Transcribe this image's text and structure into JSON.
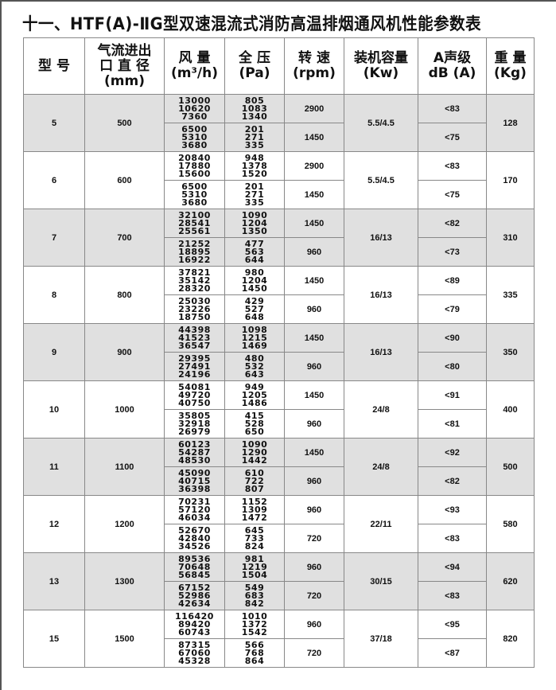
{
  "title": "十一、HTF(A)-ⅡG型双速混流式消防高温排烟通风机性能参数表",
  "headers": [
    [
      "型 号"
    ],
    [
      "气流进出",
      "口 直 径",
      "(mm)"
    ],
    [
      "风   量",
      "(m³/h)"
    ],
    [
      "全   压",
      "(Pa)"
    ],
    [
      "转   速",
      "(rpm)"
    ],
    [
      "装机容量",
      "(Kw)"
    ],
    [
      "A声级",
      "dB (A)"
    ],
    [
      "重 量",
      "(Kg)"
    ]
  ],
  "rows": [
    {
      "model": "5",
      "diameter": "500",
      "power": "5.5/4.5",
      "weight": "128",
      "sub": [
        {
          "flow": [
            "13000",
            "10620",
            "7360"
          ],
          "pressure": [
            "805",
            "1083",
            "1340"
          ],
          "speed": "2900",
          "noise": "<83"
        },
        {
          "flow": [
            "6500",
            "5310",
            "3680"
          ],
          "pressure": [
            "201",
            "271",
            "335"
          ],
          "speed": "1450",
          "noise": "<75"
        }
      ]
    },
    {
      "model": "6",
      "diameter": "600",
      "power": "5.5/4.5",
      "weight": "170",
      "sub": [
        {
          "flow": [
            "20840",
            "17880",
            "15600"
          ],
          "pressure": [
            "948",
            "1378",
            "1520"
          ],
          "speed": "2900",
          "noise": "<83"
        },
        {
          "flow": [
            "6500",
            "5310",
            "3680"
          ],
          "pressure": [
            "201",
            "271",
            "335"
          ],
          "speed": "1450",
          "noise": "<75"
        }
      ]
    },
    {
      "model": "7",
      "diameter": "700",
      "power": "16/13",
      "weight": "310",
      "sub": [
        {
          "flow": [
            "32100",
            "28541",
            "25561"
          ],
          "pressure": [
            "1090",
            "1204",
            "1350"
          ],
          "speed": "1450",
          "noise": "<82"
        },
        {
          "flow": [
            "21252",
            "18895",
            "16922"
          ],
          "pressure": [
            "477",
            "563",
            "644"
          ],
          "speed": "960",
          "noise": "<73"
        }
      ]
    },
    {
      "model": "8",
      "diameter": "800",
      "power": "16/13",
      "weight": "335",
      "sub": [
        {
          "flow": [
            "37821",
            "35142",
            "28320"
          ],
          "pressure": [
            "980",
            "1204",
            "1450"
          ],
          "speed": "1450",
          "noise": "<89"
        },
        {
          "flow": [
            "25030",
            "23226",
            "18750"
          ],
          "pressure": [
            "429",
            "527",
            "648"
          ],
          "speed": "960",
          "noise": "<79"
        }
      ]
    },
    {
      "model": "9",
      "diameter": "900",
      "power": "16/13",
      "weight": "350",
      "sub": [
        {
          "flow": [
            "44398",
            "41523",
            "36547"
          ],
          "pressure": [
            "1098",
            "1215",
            "1469"
          ],
          "speed": "1450",
          "noise": "<90"
        },
        {
          "flow": [
            "29395",
            "27491",
            "24196"
          ],
          "pressure": [
            "480",
            "532",
            "643"
          ],
          "speed": "960",
          "noise": "<80"
        }
      ]
    },
    {
      "model": "10",
      "diameter": "1000",
      "power": "24/8",
      "weight": "400",
      "sub": [
        {
          "flow": [
            "54081",
            "49720",
            "40750"
          ],
          "pressure": [
            "949",
            "1205",
            "1486"
          ],
          "speed": "1450",
          "noise": "<91"
        },
        {
          "flow": [
            "35805",
            "32918",
            "26979"
          ],
          "pressure": [
            "415",
            "528",
            "650"
          ],
          "speed": "960",
          "noise": "<81"
        }
      ]
    },
    {
      "model": "11",
      "diameter": "1100",
      "power": "24/8",
      "weight": "500",
      "sub": [
        {
          "flow": [
            "60123",
            "54287",
            "48530"
          ],
          "pressure": [
            "1090",
            "1290",
            "1442"
          ],
          "speed": "1450",
          "noise": "<92"
        },
        {
          "flow": [
            "45090",
            "40715",
            "36398"
          ],
          "pressure": [
            "610",
            "722",
            "807"
          ],
          "speed": "960",
          "noise": "<82"
        }
      ]
    },
    {
      "model": "12",
      "diameter": "1200",
      "power": "22/11",
      "weight": "580",
      "sub": [
        {
          "flow": [
            "70231",
            "57120",
            "46034"
          ],
          "pressure": [
            "1152",
            "1309",
            "1472"
          ],
          "speed": "960",
          "noise": "<93"
        },
        {
          "flow": [
            "52670",
            "42840",
            "34526"
          ],
          "pressure": [
            "645",
            "733",
            "824"
          ],
          "speed": "720",
          "noise": "<83"
        }
      ]
    },
    {
      "model": "13",
      "diameter": "1300",
      "power": "30/15",
      "weight": "620",
      "sub": [
        {
          "flow": [
            "89536",
            "70648",
            "56845"
          ],
          "pressure": [
            "981",
            "1219",
            "1504"
          ],
          "speed": "960",
          "noise": "<94"
        },
        {
          "flow": [
            "67152",
            "52986",
            "42634"
          ],
          "pressure": [
            "549",
            "683",
            "842"
          ],
          "speed": "720",
          "noise": "<83"
        }
      ]
    },
    {
      "model": "15",
      "diameter": "1500",
      "power": "37/18",
      "weight": "820",
      "sub": [
        {
          "flow": [
            "116420",
            "89420",
            "60743"
          ],
          "pressure": [
            "1010",
            "1372",
            "1542"
          ],
          "speed": "960",
          "noise": "<95"
        },
        {
          "flow": [
            "87315",
            "67060",
            "45328"
          ],
          "pressure": [
            "566",
            "768",
            "864"
          ],
          "speed": "720",
          "noise": "<87"
        }
      ]
    }
  ]
}
